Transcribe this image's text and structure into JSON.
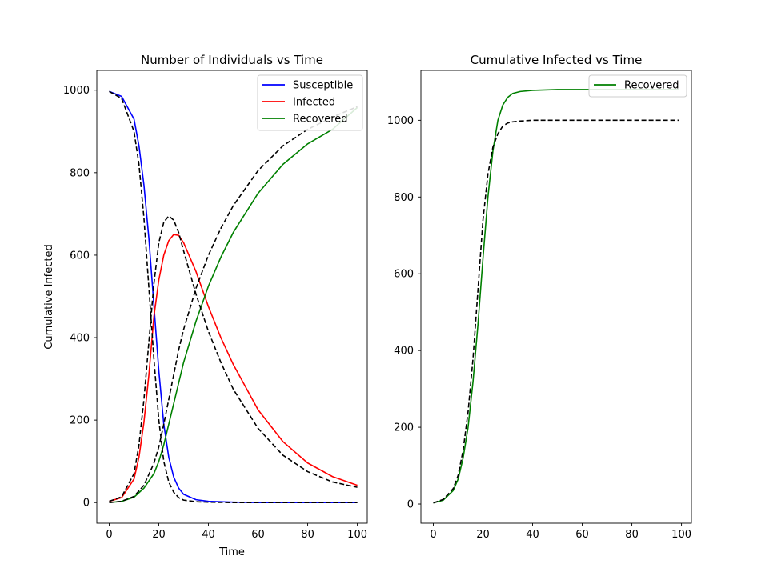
{
  "chart_data": [
    {
      "type": "line",
      "title": "Number of Individuals vs Time",
      "xlabel": "Time",
      "ylabel": "Cumulative Infected",
      "xlim": [
        -5,
        104
      ],
      "ylim": [
        -50,
        1048
      ],
      "xticks": [
        0,
        20,
        40,
        60,
        80,
        100
      ],
      "yticks": [
        0,
        200,
        400,
        600,
        800,
        1000
      ],
      "legend": {
        "placement": "top-right",
        "entries": [
          "Susceptible",
          "Infected",
          "Recovered"
        ]
      },
      "grid": false,
      "series": [
        {
          "name": "Susceptible",
          "color": "#0000ff",
          "style": "solid",
          "x": [
            0,
            5,
            10,
            12,
            14,
            16,
            18,
            20,
            22,
            24,
            26,
            28,
            30,
            35,
            40,
            50,
            60,
            80,
            100
          ],
          "values": [
            997,
            985,
            930,
            865,
            770,
            640,
            480,
            320,
            190,
            110,
            62,
            35,
            20,
            7,
            3,
            1,
            0,
            0,
            0
          ]
        },
        {
          "name": "Infected",
          "color": "#ff0000",
          "style": "solid",
          "x": [
            0,
            5,
            10,
            12,
            14,
            16,
            18,
            20,
            22,
            24,
            26,
            28,
            30,
            35,
            40,
            45,
            50,
            60,
            70,
            80,
            90,
            100
          ],
          "values": [
            3,
            12,
            57,
            110,
            195,
            310,
            450,
            540,
            600,
            635,
            650,
            648,
            630,
            560,
            475,
            400,
            335,
            225,
            148,
            96,
            63,
            42
          ]
        },
        {
          "name": "Recovered",
          "color": "#008000",
          "style": "solid",
          "x": [
            0,
            5,
            10,
            14,
            18,
            20,
            22,
            24,
            26,
            28,
            30,
            35,
            40,
            45,
            50,
            60,
            70,
            80,
            90,
            100
          ],
          "values": [
            0,
            3,
            13,
            35,
            70,
            100,
            140,
            190,
            240,
            290,
            340,
            440,
            525,
            595,
            655,
            750,
            820,
            870,
            905,
            958
          ]
        },
        {
          "name": "",
          "color": "#000000",
          "style": "dashed",
          "x": [
            0,
            5,
            10,
            12,
            14,
            16,
            18,
            20,
            22,
            24,
            26,
            28,
            30,
            35,
            40,
            50,
            60,
            80,
            100
          ],
          "values": [
            997,
            980,
            900,
            820,
            690,
            520,
            350,
            200,
            100,
            50,
            25,
            12,
            6,
            2,
            1,
            0,
            0,
            0,
            0
          ]
        },
        {
          "name": "",
          "color": "#000000",
          "style": "dashed",
          "x": [
            0,
            5,
            10,
            12,
            14,
            16,
            18,
            20,
            22,
            24,
            26,
            28,
            30,
            35,
            40,
            45,
            50,
            60,
            70,
            80,
            90,
            100
          ],
          "values": [
            3,
            14,
            70,
            140,
            250,
            390,
            530,
            630,
            680,
            695,
            685,
            655,
            610,
            505,
            415,
            340,
            275,
            180,
            115,
            75,
            50,
            37
          ]
        },
        {
          "name": "",
          "color": "#000000",
          "style": "dashed",
          "x": [
            0,
            5,
            10,
            14,
            18,
            20,
            22,
            24,
            26,
            28,
            30,
            35,
            40,
            45,
            50,
            60,
            70,
            80,
            90,
            100
          ],
          "values": [
            0,
            3,
            15,
            42,
            95,
            135,
            190,
            250,
            310,
            370,
            420,
            520,
            600,
            665,
            720,
            805,
            865,
            905,
            935,
            960
          ]
        }
      ]
    },
    {
      "type": "line",
      "title": "Cumulative Infected vs Time",
      "xlabel": "",
      "ylabel": "",
      "xlim": [
        -5,
        104
      ],
      "ylim": [
        -50,
        1130
      ],
      "xticks": [
        0,
        20,
        40,
        60,
        80,
        100
      ],
      "yticks": [
        0,
        200,
        400,
        600,
        800,
        1000
      ],
      "legend": {
        "placement": "top-right",
        "entries": [
          "Recovered"
        ]
      },
      "grid": false,
      "series": [
        {
          "name": "Recovered",
          "color": "#008000",
          "style": "solid",
          "x": [
            0,
            4,
            8,
            10,
            12,
            14,
            16,
            18,
            20,
            22,
            24,
            26,
            28,
            30,
            32,
            35,
            40,
            50,
            60,
            80,
            99
          ],
          "values": [
            3,
            10,
            35,
            65,
            120,
            200,
            320,
            470,
            640,
            800,
            920,
            1000,
            1040,
            1060,
            1070,
            1075,
            1078,
            1080,
            1080,
            1080,
            1080
          ]
        },
        {
          "name": "",
          "color": "#000000",
          "style": "dashed",
          "x": [
            0,
            4,
            8,
            10,
            12,
            14,
            16,
            18,
            20,
            22,
            24,
            26,
            28,
            30,
            32,
            35,
            40,
            50,
            60,
            80,
            99
          ],
          "values": [
            3,
            12,
            40,
            75,
            140,
            240,
            380,
            560,
            740,
            860,
            930,
            965,
            985,
            993,
            996,
            998,
            1000,
            1000,
            1000,
            1000,
            1000
          ]
        }
      ]
    }
  ]
}
